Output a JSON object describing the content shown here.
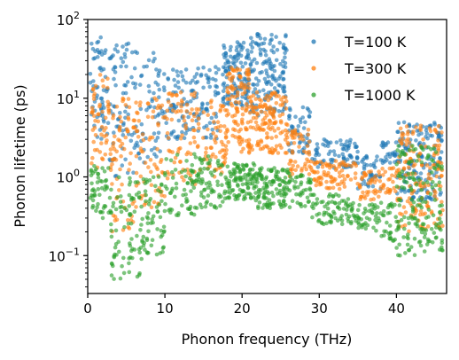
{
  "chart_data": {
    "type": "scatter",
    "title": "",
    "xlabel": "Phonon frequency (THz)",
    "ylabel": "Phonon lifetime (ps)",
    "xlim": [
      0,
      46.5
    ],
    "ylim": [
      0.033,
      100
    ],
    "yscale": "log",
    "grid": false,
    "legend_position": "top-right",
    "x_ticks": [
      {
        "value": 0,
        "label": "0"
      },
      {
        "value": 10,
        "label": "10"
      },
      {
        "value": 20,
        "label": "20"
      },
      {
        "value": 30,
        "label": "30"
      },
      {
        "value": 40,
        "label": "40"
      }
    ],
    "y_ticks": [
      {
        "value": 0.1,
        "base": "10",
        "exp": "−1"
      },
      {
        "value": 1,
        "base": "10",
        "exp": "0"
      },
      {
        "value": 10,
        "base": "10",
        "exp": "1"
      },
      {
        "value": 100,
        "base": "10",
        "exp": "2"
      }
    ],
    "series": [
      {
        "name": "T=100 K",
        "color": "#1f77b4",
        "segments": [
          {
            "x": [
              0.3,
              2.5
            ],
            "y": [
              3,
              60
            ],
            "n": 55
          },
          {
            "x": [
              2.5,
              6
            ],
            "y": [
              1,
              50
            ],
            "n": 70
          },
          {
            "x": [
              6,
              10
            ],
            "y": [
              1.5,
              40
            ],
            "n": 70
          },
          {
            "x": [
              10,
              13
            ],
            "y": [
              3,
              25
            ],
            "n": 55
          },
          {
            "x": [
              13,
              17
            ],
            "y": [
              3,
              25
            ],
            "n": 70
          },
          {
            "x": [
              17.5,
              21
            ],
            "y": [
              8,
              55
            ],
            "n": 120
          },
          {
            "x": [
              21,
              25.8
            ],
            "y": [
              6,
              70
            ],
            "n": 150
          },
          {
            "x": [
              26,
              29
            ],
            "y": [
              2,
              8
            ],
            "n": 50
          },
          {
            "x": [
              29,
              35
            ],
            "y": [
              1.3,
              3
            ],
            "n": 80
          },
          {
            "x": [
              35,
              38
            ],
            "y": [
              0.7,
              2
            ],
            "n": 40
          },
          {
            "x": [
              38,
              40
            ],
            "y": [
              1.5,
              3
            ],
            "n": 25
          },
          {
            "x": [
              40,
              46
            ],
            "y": [
              0.5,
              5
            ],
            "n": 160
          }
        ]
      },
      {
        "name": "T=300 K",
        "color": "#ff7f0e",
        "segments": [
          {
            "x": [
              0.5,
              3
            ],
            "y": [
              1,
              20
            ],
            "n": 55
          },
          {
            "x": [
              3,
              6
            ],
            "y": [
              0.2,
              10
            ],
            "n": 65
          },
          {
            "x": [
              6,
              10
            ],
            "y": [
              0.4,
              10
            ],
            "n": 70
          },
          {
            "x": [
              10,
              14
            ],
            "y": [
              0.8,
              12
            ],
            "n": 70
          },
          {
            "x": [
              14,
              18
            ],
            "y": [
              1,
              10
            ],
            "n": 70
          },
          {
            "x": [
              18,
              21
            ],
            "y": [
              2,
              25
            ],
            "n": 110
          },
          {
            "x": [
              21,
              26
            ],
            "y": [
              2,
              12
            ],
            "n": 140
          },
          {
            "x": [
              26,
              29
            ],
            "y": [
              1,
              4
            ],
            "n": 50
          },
          {
            "x": [
              29,
              35
            ],
            "y": [
              0.7,
              1.6
            ],
            "n": 80
          },
          {
            "x": [
              35,
              38
            ],
            "y": [
              0.5,
              1.2
            ],
            "n": 40
          },
          {
            "x": [
              38,
              40
            ],
            "y": [
              0.6,
              1.3
            ],
            "n": 25
          },
          {
            "x": [
              40,
              46
            ],
            "y": [
              0.2,
              4.5
            ],
            "n": 160
          }
        ]
      },
      {
        "name": "T=1000 K",
        "color": "#2ca02c",
        "segments": [
          {
            "x": [
              0.3,
              3
            ],
            "y": [
              0.3,
              1.5
            ],
            "n": 50
          },
          {
            "x": [
              3,
              7
            ],
            "y": [
              0.05,
              1
            ],
            "n": 80
          },
          {
            "x": [
              7,
              10
            ],
            "y": [
              0.1,
              1
            ],
            "n": 60
          },
          {
            "x": [
              10,
              14
            ],
            "y": [
              0.3,
              2
            ],
            "n": 60
          },
          {
            "x": [
              14,
              18
            ],
            "y": [
              0.4,
              2
            ],
            "n": 70
          },
          {
            "x": [
              18,
              22
            ],
            "y": [
              0.5,
              1.5
            ],
            "n": 110
          },
          {
            "x": [
              22,
              26
            ],
            "y": [
              0.4,
              1.3
            ],
            "n": 110
          },
          {
            "x": [
              26,
              29
            ],
            "y": [
              0.4,
              1.1
            ],
            "n": 45
          },
          {
            "x": [
              29,
              35
            ],
            "y": [
              0.25,
              0.6
            ],
            "n": 80
          },
          {
            "x": [
              35,
              38
            ],
            "y": [
              0.2,
              0.45
            ],
            "n": 40
          },
          {
            "x": [
              38,
              40
            ],
            "y": [
              0.15,
              0.5
            ],
            "n": 30
          },
          {
            "x": [
              40,
              46
            ],
            "y": [
              0.1,
              2.5
            ],
            "n": 160
          }
        ]
      }
    ]
  }
}
